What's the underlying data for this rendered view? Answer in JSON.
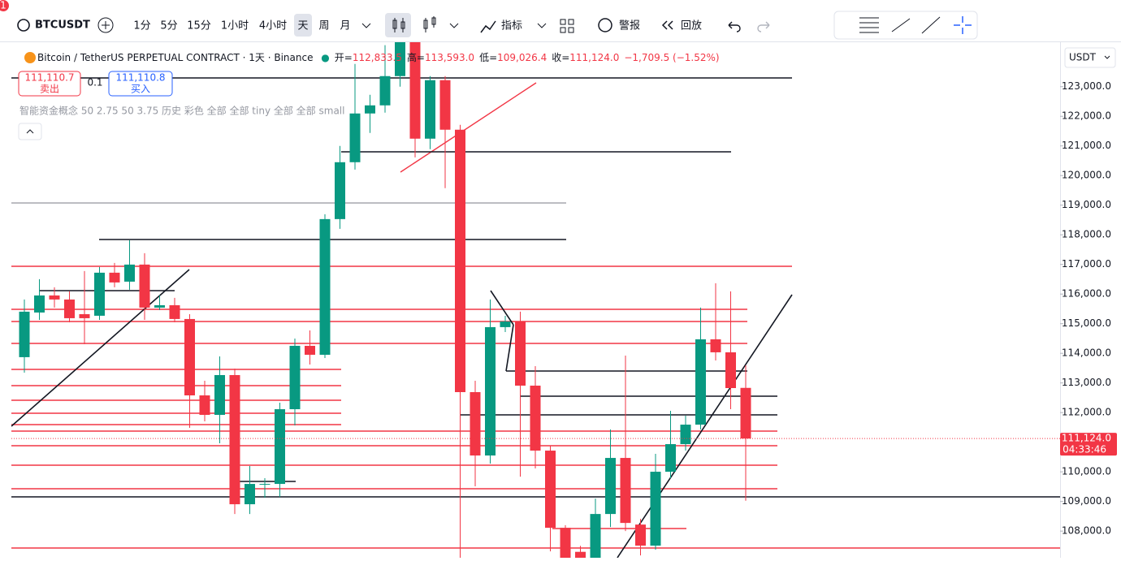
{
  "badge": "1",
  "toolbar": {
    "symbol": "BTCUSDT",
    "intervals": [
      "1分",
      "5分",
      "15分",
      "1小时",
      "4小时",
      "天",
      "周",
      "月"
    ],
    "indicators": "指标",
    "alert": "警报",
    "replay": "回放"
  },
  "legend": {
    "title": "Bitcoin / TetherUS PERPETUAL CONTRACT · 1天 · Binance",
    "open_label": "开=",
    "open": "112,833.5",
    "high_label": "高=",
    "high": "113,593.0",
    "low_label": "低=",
    "low": "109,026.4",
    "close_label": "收=",
    "close": "111,124.0",
    "change": "−1,709.5 (−1.52%)"
  },
  "trade": {
    "sell_price": "111,110.7",
    "sell_label": "卖出",
    "quantity": "0.1",
    "buy_price": "111,110.8",
    "buy_label": "买入"
  },
  "indicator_text": "智能资金概念 50 2.75 50 3.75 历史 彩色 全部 全部 tiny 全部 全部 small",
  "currency": "USDT",
  "chart_data": {
    "type": "candlestick",
    "up_color": "#089981",
    "down_color": "#f23645",
    "open": [
      113870,
      115377,
      115953,
      115816,
      115322,
      115268,
      116721,
      116419,
      116995,
      115542,
      115624,
      115158,
      112580,
      111922,
      113266,
      108906,
      109565,
      109592,
      112114,
      114253,
      113951,
      118530,
      120450,
      122095,
      122369,
      123356,
      124600,
      121245,
      123219,
      121547,
      112690,
      110551,
      114884,
      115075,
      112909,
      110716,
      108111,
      107300,
      107000,
      108577,
      110469,
      108220,
      107508,
      110003,
      110935,
      111593,
      114473,
      114034,
      112833.5
    ],
    "high": [
      115816,
      116501,
      116227,
      116090,
      116776,
      116913,
      117050,
      117818,
      117379,
      115953,
      115871,
      115322,
      113074,
      113897,
      113485,
      110195,
      109784,
      112334,
      114500,
      114774,
      118695,
      120998,
      123768,
      122726,
      124400,
      124900,
      124800,
      123356,
      123356,
      121711,
      113074,
      115816,
      115267,
      115405,
      113567,
      110880,
      108200,
      107500,
      109098,
      111429,
      113924,
      108413,
      110606,
      112059,
      111895,
      115542,
      116364,
      116090,
      113593
    ],
    "low": [
      113348,
      115130,
      115542,
      115048,
      114308,
      115130,
      116227,
      116145,
      115130,
      115460,
      115048,
      111484,
      111703,
      110963,
      108577,
      108577,
      109126,
      109153,
      111566,
      113622,
      113842,
      118201,
      120203,
      121437,
      122123,
      123000,
      120614,
      120889,
      119573,
      106900,
      109510,
      110277,
      114719,
      109838,
      110113,
      107316,
      106500,
      106500,
      106600,
      108138,
      108001,
      107178,
      107371,
      109784,
      110716,
      111429,
      113759,
      112114,
      109026.4
    ],
    "close": [
      115405,
      115953,
      115816,
      115185,
      115185,
      116721,
      116392,
      116995,
      115542,
      115624,
      115158,
      112580,
      111922,
      113266,
      108906,
      109592,
      109592,
      112114,
      114253,
      113951,
      118530,
      120450,
      122095,
      122369,
      123356,
      124700,
      121245,
      123219,
      121547,
      112690,
      110551,
      114884,
      115075,
      112909,
      110716,
      108111,
      107000,
      106900,
      108577,
      110469,
      108275,
      107508,
      110003,
      110935,
      111593,
      114473,
      114034,
      112827,
      111124
    ],
    "ylim": [
      107100,
      124500
    ],
    "yticks": [
      {
        "value": 108000,
        "label": "108,000.0"
      },
      {
        "value": 109000,
        "label": "109,000.0"
      },
      {
        "value": 110000,
        "label": "110,000.0"
      },
      {
        "value": 111000,
        "label": "111,000.0"
      },
      {
        "value": 112000,
        "label": "112,000.0"
      },
      {
        "value": 113000,
        "label": "113,000.0"
      },
      {
        "value": 114000,
        "label": "114,000.0"
      },
      {
        "value": 115000,
        "label": "115,000.0"
      },
      {
        "value": 116000,
        "label": "116,000.0"
      },
      {
        "value": 117000,
        "label": "117,000.0"
      },
      {
        "value": 118000,
        "label": "118,000.0"
      },
      {
        "value": 119000,
        "label": "119,000.0"
      },
      {
        "value": 120000,
        "label": "120,000.0"
      },
      {
        "value": 121000,
        "label": "121,000.0"
      },
      {
        "value": 122000,
        "label": "122,000.0"
      },
      {
        "value": 123000,
        "label": "123,000.0"
      }
    ],
    "last_price": {
      "value": 111124,
      "label": "111,124.0"
    },
    "countdown": "04:33:46"
  }
}
